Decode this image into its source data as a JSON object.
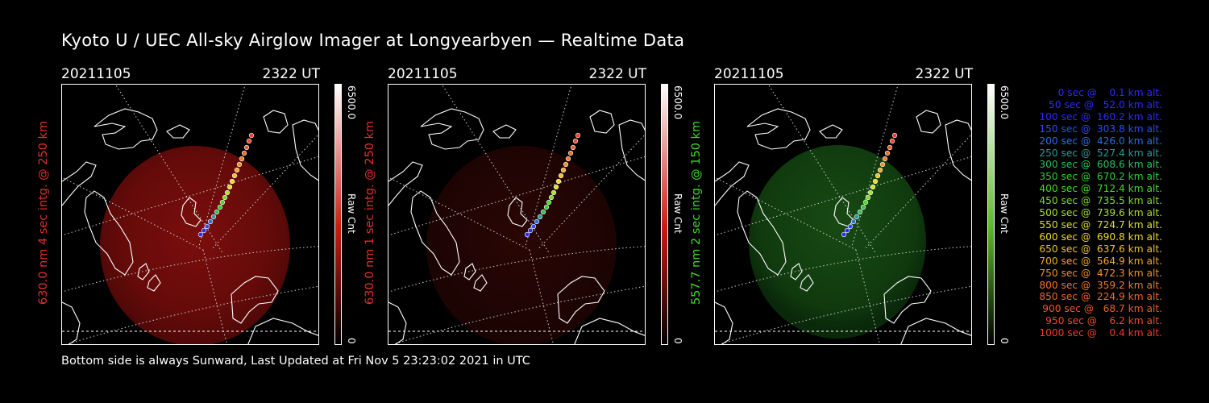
{
  "title": "Kyoto U / UEC All-sky Airglow Imager at Longyearbyen — Realtime Data",
  "footer": "Bottom side is always Sunward, Last Updated at Fri Nov  5 23:23:02 2021 in UTC",
  "panels": [
    {
      "date": "20211105",
      "time": "2322 UT",
      "ylabel": "630.0 nm 4 sec intg. @ 250 km",
      "label_color": "#e0302a",
      "cb_max": "6500.0",
      "cb_unit": "Raw Cnt",
      "cb_min": "0",
      "cb_color": "#cc1a10",
      "glow_color": "#6e0c0a",
      "glow_level": 0.75
    },
    {
      "date": "20211105",
      "time": "2322 UT",
      "ylabel": "630.0 nm 1 sec intg. @ 250 km",
      "label_color": "#e0302a",
      "cb_max": "6500.0",
      "cb_unit": "Raw Cnt",
      "cb_min": "0",
      "cb_color": "#cc1a10",
      "glow_color": "#3a0806",
      "glow_level": 0.35
    },
    {
      "date": "20211105",
      "time": "2322 UT",
      "ylabel": "557.7 nm 2 sec intg. @ 150 km",
      "label_color": "#43d92a",
      "cb_max": "6500.0",
      "cb_unit": "Raw Cnt",
      "cb_min": "0",
      "cb_color": "#5cb82a",
      "glow_color": "#123a10",
      "glow_level": 0.55
    }
  ],
  "legend": [
    {
      "text": "   0 sec @    0.1 km alt.",
      "color": "#2a2aff"
    },
    {
      "text": "  50 sec @   52.0 km alt.",
      "color": "#2a2aff"
    },
    {
      "text": " 100 sec @  160.2 km alt.",
      "color": "#2a2aff"
    },
    {
      "text": " 150 sec @  303.8 km alt.",
      "color": "#2a4cff"
    },
    {
      "text": " 200 sec @  426.0 km alt.",
      "color": "#2a70e0"
    },
    {
      "text": " 250 sec @  527.4 km alt.",
      "color": "#2a9a9a"
    },
    {
      "text": " 300 sec @  608.6 km alt.",
      "color": "#2ac060"
    },
    {
      "text": " 350 sec @  670.2 km alt.",
      "color": "#2ad02a"
    },
    {
      "text": " 400 sec @  712.4 km alt.",
      "color": "#4ad82a"
    },
    {
      "text": " 450 sec @  735.5 km alt.",
      "color": "#7ad82a"
    },
    {
      "text": " 500 sec @  739.6 km alt.",
      "color": "#a8e02a"
    },
    {
      "text": " 550 sec @  724.7 km alt.",
      "color": "#d8e02a"
    },
    {
      "text": " 600 sec @  690.8 km alt.",
      "color": "#f0d82a"
    },
    {
      "text": " 650 sec @  637.6 km alt.",
      "color": "#f0c02a"
    },
    {
      "text": " 700 sec @  564.9 km alt.",
      "color": "#f0a82a"
    },
    {
      "text": " 750 sec @  472.3 km alt.",
      "color": "#f0902a"
    },
    {
      "text": " 800 sec @  359.2 km alt.",
      "color": "#f07a2a"
    },
    {
      "text": " 850 sec @  224.9 km alt.",
      "color": "#f0682a"
    },
    {
      "text": " 900 sec @   68.7 km alt.",
      "color": "#f05a2a"
    },
    {
      "text": " 950 sec @    6.2 km alt.",
      "color": "#f04a2a"
    },
    {
      "text": "1000 sec @    0.4 km alt.",
      "color": "#f03a2a"
    }
  ]
}
